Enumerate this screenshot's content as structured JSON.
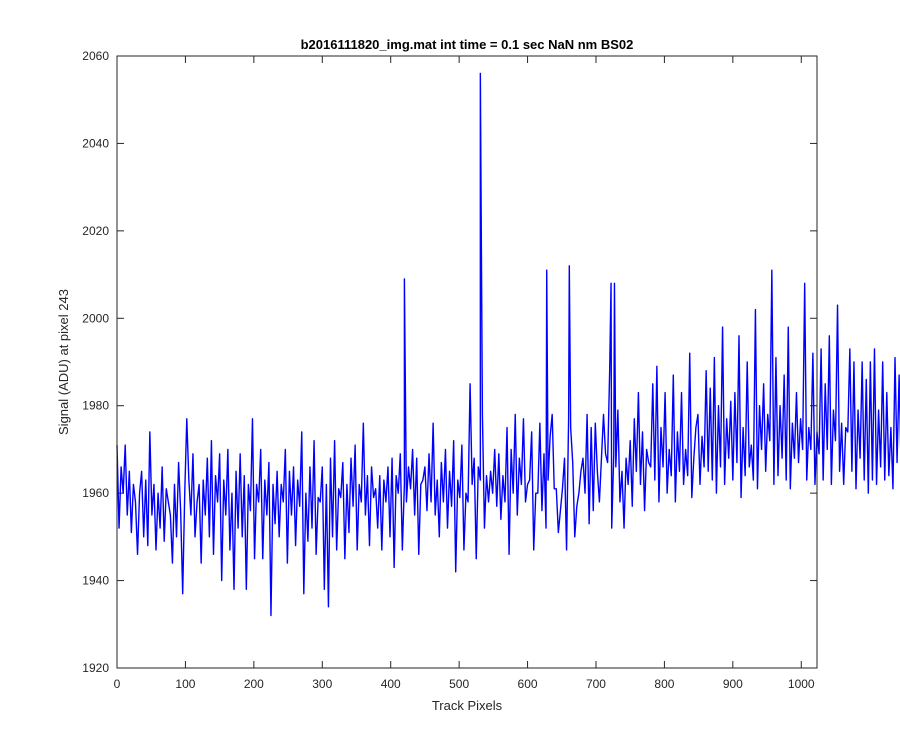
{
  "chart_data": {
    "type": "line",
    "title": "b2016111820_img.mat int time = 0.1 sec  NaN nm BS02",
    "xlabel": "Track Pixels",
    "ylabel": "Signal (ADU) at pixel 243",
    "xlim": [
      0,
      1023
    ],
    "ylim": [
      1920,
      2060
    ],
    "xticks": [
      0,
      100,
      200,
      300,
      400,
      500,
      600,
      700,
      800,
      900,
      1000
    ],
    "yticks": [
      1920,
      1940,
      1960,
      1980,
      2000,
      2020,
      2040,
      2060
    ],
    "grid": false,
    "legend": "none",
    "series": [
      {
        "color": "#0000ff",
        "x_start": 0,
        "x_step": 3,
        "values": [
          1971,
          1952,
          1966,
          1960,
          1971,
          1955,
          1965,
          1951,
          1962,
          1958,
          1946,
          1960,
          1965,
          1950,
          1963,
          1948,
          1974,
          1955,
          1962,
          1947,
          1960,
          1952,
          1966,
          1949,
          1961,
          1958,
          1955,
          1944,
          1962,
          1950,
          1967,
          1956,
          1937,
          1960,
          1977,
          1963,
          1955,
          1969,
          1950,
          1958,
          1962,
          1944,
          1963,
          1955,
          1968,
          1950,
          1972,
          1946,
          1964,
          1958,
          1969,
          1940,
          1963,
          1955,
          1970,
          1947,
          1960,
          1938,
          1965,
          1952,
          1969,
          1950,
          1964,
          1938,
          1962,
          1956,
          1977,
          1945,
          1962,
          1958,
          1970,
          1945,
          1963,
          1955,
          1967,
          1932,
          1962,
          1953,
          1965,
          1950,
          1962,
          1958,
          1970,
          1944,
          1965,
          1955,
          1966,
          1948,
          1963,
          1957,
          1974,
          1937,
          1960,
          1949,
          1966,
          1952,
          1972,
          1946,
          1959,
          1958,
          1966,
          1938,
          1962,
          1934,
          1968,
          1950,
          1972,
          1947,
          1961,
          1959,
          1967,
          1945,
          1962,
          1951,
          1968,
          1957,
          1971,
          1947,
          1962,
          1958,
          1976,
          1955,
          1964,
          1948,
          1966,
          1959,
          1961,
          1952,
          1964,
          1947,
          1963,
          1958,
          1966,
          1950,
          1968,
          1943,
          1964,
          1960,
          1969,
          1947,
          1962,
          1958,
          1966,
          1961,
          1970,
          1955,
          1968,
          1946,
          1962,
          1963,
          1966,
          1956,
          1969,
          1958,
          1976,
          1955,
          1963,
          1950,
          1967,
          1958,
          1970,
          1952,
          1965,
          1957,
          1972,
          1942,
          1963,
          1959,
          1971,
          1947,
          1960,
          1958,
          1985,
          1962,
          1968,
          1945,
          1966,
          1963,
          1978,
          1952,
          1964,
          1958,
          1965,
          1960,
          1970,
          1957,
          1969,
          1954,
          1964,
          1958,
          1975,
          1946,
          1970,
          1960,
          1978,
          1955,
          1968,
          1962,
          1977,
          1958,
          1962,
          1963,
          1974,
          1947,
          1960,
          1960,
          1976,
          1956,
          1969,
          1952,
          1963,
          1973,
          1978,
          1961,
          1961,
          1951,
          1956,
          1961,
          1968,
          1947,
          1977,
          1975,
          1967,
          1950,
          1957,
          1960,
          1965,
          1968,
          1960,
          1978,
          1953,
          1975,
          1956,
          1976,
          1965,
          1958,
          1968,
          1978,
          1969,
          1967,
          1988,
          1952,
          1969,
          1966,
          1979,
          1958,
          1965,
          1952,
          1968,
          1962,
          1972,
          1957,
          1977,
          1965,
          1983,
          1962,
          1974,
          1956,
          1970,
          1967,
          1966,
          1985,
          1963,
          1989,
          1958,
          1975,
          1966,
          1983,
          1960,
          1970,
          1964,
          1987,
          1958,
          1974,
          1965,
          1983,
          1962,
          1970,
          1964,
          1992,
          1959,
          1968,
          1975,
          1978,
          1962,
          1973,
          1966,
          1988,
          1965,
          1984,
          1963,
          1991,
          1960,
          1980,
          1966,
          1998,
          1962,
          1977,
          1968,
          1981,
          1963,
          1983,
          1967,
          1996,
          1959,
          1975,
          1964,
          1990,
          1966,
          1971,
          1963,
          2002,
          1961,
          1980,
          1970,
          1985,
          1965,
          1978,
          1972,
          2011,
          1962,
          1991,
          1964,
          1980,
          1968,
          1987,
          1963,
          1998,
          1961,
          1976,
          1968,
          1983,
          1967,
          1977,
          1970,
          2008,
          1963,
          1975,
          1970,
          1992,
          1962,
          1974,
          1969,
          1993,
          1963,
          1985,
          1970,
          1996,
          1962,
          1979,
          1972,
          2003,
          1965,
          1976,
          1962,
          1975,
          1974,
          1993,
          1965,
          1990,
          1961,
          1979,
          1968,
          1990,
          1963,
          1986,
          1960,
          1990,
          1963,
          1993,
          1962,
          1979,
          1966,
          1990,
          1963,
          1983,
          1964,
          1975,
          1961,
          1991,
          1967,
          1987,
          1965,
          1974,
          1972,
          1979,
          1962,
          1975,
          1970,
          1980,
          1960,
          1983,
          1962,
          1976,
          1969,
          1986,
          1964,
          1979,
          1970,
          1993,
          1965,
          1977,
          1962,
          1973,
          1966,
          1987,
          1963,
          1971,
          1968,
          1982,
          1965,
          1983,
          1964,
          1977,
          1971,
          1980,
          1955,
          1986,
          1960,
          1975,
          1968,
          1972,
          1954,
          1974,
          1962,
          1972,
          1966,
          1980,
          1963,
          1976,
          1969,
          1977,
          1962,
          1982,
          1958,
          1986,
          1964,
          1973,
          1959,
          1980,
          1967,
          1966,
          1970,
          1973,
          1958,
          1972,
          1962,
          1974,
          1958,
          1971,
          1959,
          1978,
          1963,
          1969,
          1956,
          1974,
          1961,
          1972,
          1960,
          1977,
          1956,
          1967,
          1960,
          1975,
          1955,
          1966,
          1965,
          1968,
          1950,
          1971,
          1962,
          1968,
          1953,
          1979,
          1961,
          1970,
          1955,
          1969,
          1960,
          1971,
          1952,
          1967,
          1955,
          1965,
          1958,
          1973,
          1950,
          1978,
          1963,
          1972,
          1958,
          1970,
          1955,
          1976,
          1963,
          1967,
          1953,
          1964,
          1958,
          1971,
          1948,
          1973,
          1960,
          1970,
          1955,
          1966,
          1962,
          1960,
          1945,
          1957,
          1967,
          1972,
          1962,
          1990,
          1963,
          1959,
          1956,
          1970,
          1958,
          1976,
          1960,
          1966,
          1958,
          1977,
          1953,
          1965,
          1962,
          1972,
          1960,
          1975,
          1958,
          1969,
          1944,
          1981,
          1961,
          1967,
          1963,
          1972,
          1960,
          1970,
          1946,
          1992,
          1953,
          1977,
          1950,
          1970,
          1962,
          1974,
          1957,
          1969,
          1958,
          1973,
          1955,
          1980,
          1950,
          1972,
          1964,
          1978,
          1955,
          1973,
          1958,
          1982,
          1960,
          1978,
          1962,
          1980,
          1960,
          1983,
          1965,
          1970,
          1962,
          1975,
          1958,
          1969,
          1963,
          1966,
          1955,
          1964,
          1962,
          1966,
          1951
        ]
      },
      {
        "color": "#0000ff",
        "spikes": [
          [
            420,
            2009
          ],
          [
            531,
            2056
          ],
          [
            628,
            2011
          ],
          [
            661,
            2012
          ],
          [
            722,
            2008
          ],
          [
            727,
            2008
          ]
        ]
      }
    ]
  }
}
